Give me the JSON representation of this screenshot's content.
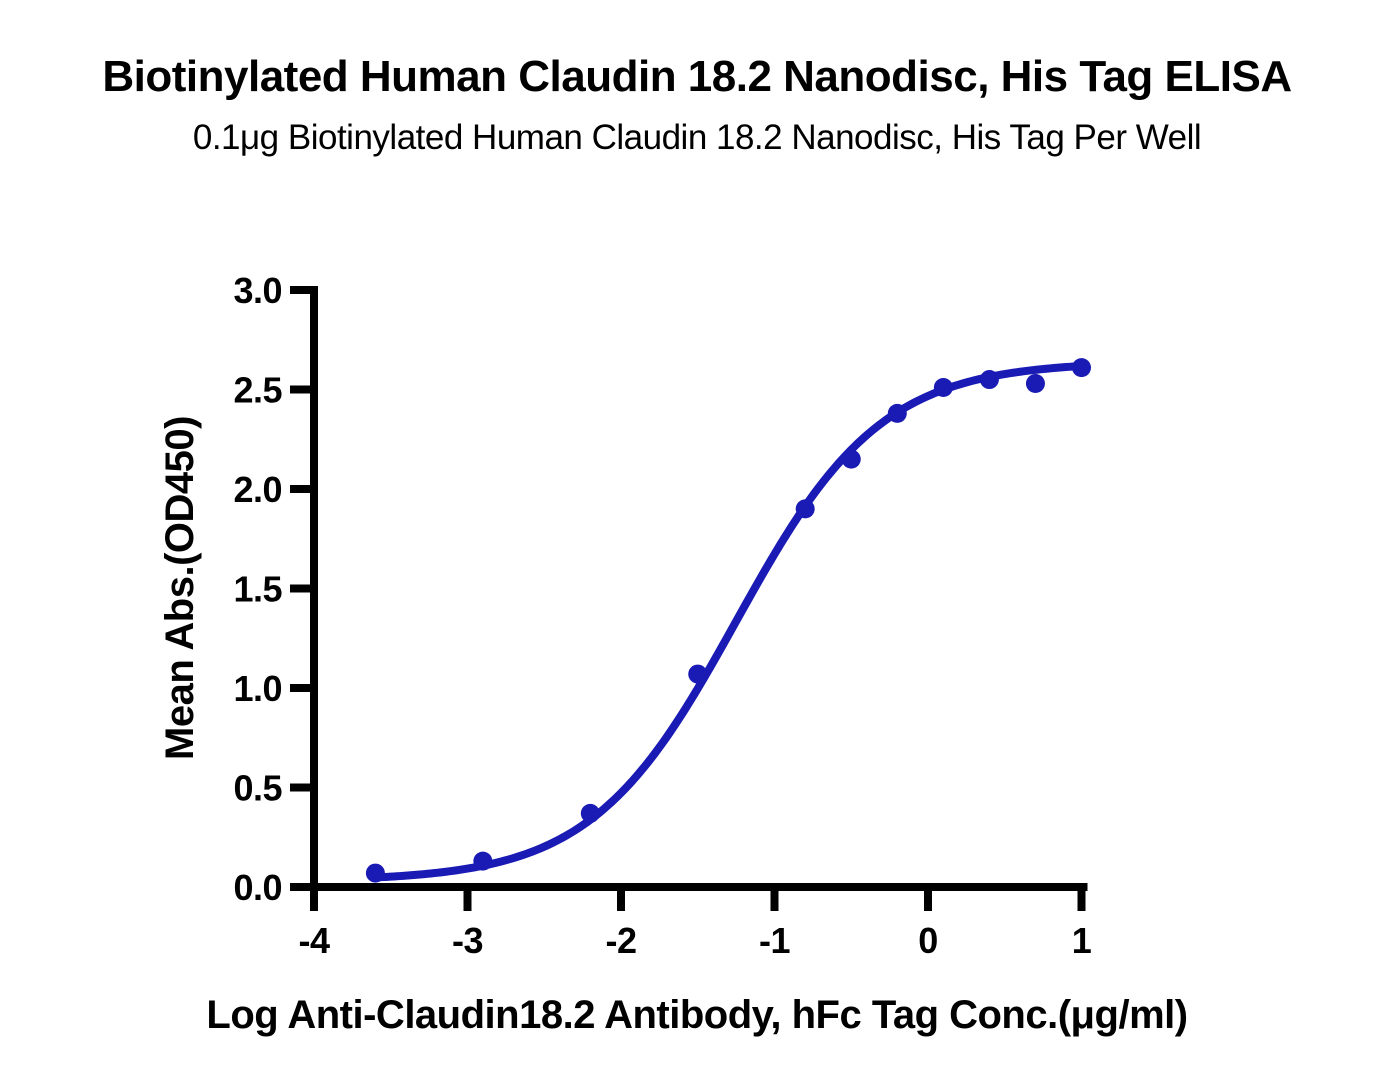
{
  "title": "Biotinylated Human Claudin 18.2 Nanodisc, His Tag ELISA",
  "subtitle": "0.1μg Biotinylated Human Claudin 18.2 Nanodisc, His Tag Per Well",
  "chart_data": {
    "type": "scatter",
    "title": "Biotinylated Human Claudin 18.2 Nanodisc, His Tag ELISA",
    "subtitle": "0.1μg Biotinylated Human Claudin 18.2 Nanodisc, His Tag Per Well",
    "xlabel": "Log Anti-Claudin18.2 Antibody, hFc Tag Conc.(μg/ml)",
    "ylabel": "Mean Abs.(OD450)",
    "xlim": [
      -4,
      1
    ],
    "ylim": [
      0,
      3
    ],
    "x_ticks": [
      -4,
      -3,
      -2,
      -1,
      0,
      1
    ],
    "x_tick_labels": [
      "-4",
      "-3",
      "-2",
      "-1",
      "0",
      "1"
    ],
    "y_ticks": [
      0,
      0.5,
      1,
      1.5,
      2,
      2.5,
      3
    ],
    "y_tick_labels": [
      "0.0",
      "0.5",
      "1.0",
      "1.5",
      "2.0",
      "2.5",
      "3.0"
    ],
    "grid": false,
    "legend": null,
    "series": [
      {
        "name": "Anti-Claudin18.2 Antibody, hFc Tag",
        "marker": "circle",
        "points": [
          {
            "x": -3.6,
            "y": 0.07
          },
          {
            "x": -2.9,
            "y": 0.13
          },
          {
            "x": -2.2,
            "y": 0.37
          },
          {
            "x": -1.5,
            "y": 1.07
          },
          {
            "x": -0.8,
            "y": 1.9
          },
          {
            "x": -0.5,
            "y": 2.15
          },
          {
            "x": -0.2,
            "y": 2.38
          },
          {
            "x": 0.1,
            "y": 2.51
          },
          {
            "x": 0.4,
            "y": 2.55
          },
          {
            "x": 0.7,
            "y": 2.53
          },
          {
            "x": 1.0,
            "y": 2.61
          }
        ],
        "fit_curve": {
          "model": "four_parameter_logistic",
          "bottom": 0.03,
          "top": 2.64,
          "log_ec50": -1.25,
          "hill_slope": 0.92,
          "x_start": -3.6,
          "x_end": 1.0
        }
      }
    ],
    "colors": {
      "series": "#1a1ab5",
      "axis": "#000000",
      "background": "#ffffff"
    }
  }
}
